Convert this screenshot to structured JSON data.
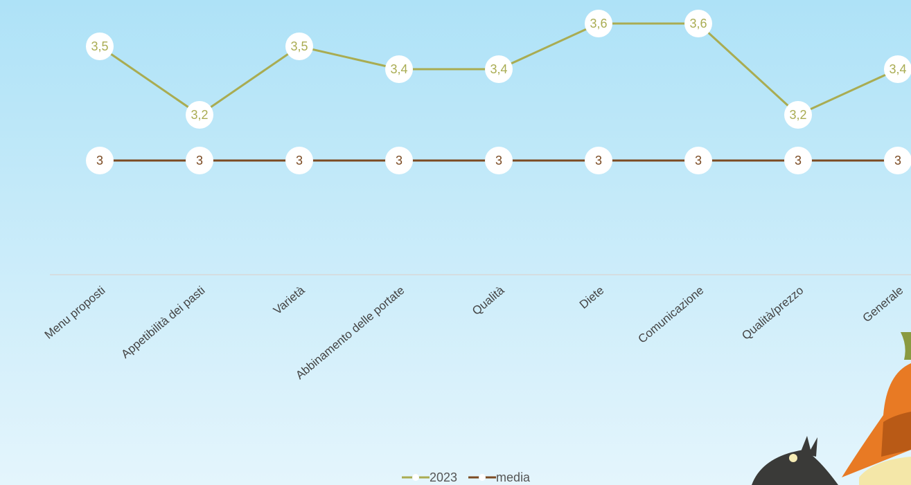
{
  "chart_data": {
    "type": "line",
    "categories": [
      "Menu proposti",
      "Appetibilità dei pasti",
      "Varietà",
      "Abbinamento delle portate",
      "Qualità",
      "Diete",
      "Comunicazione",
      "Qualità/prezzo",
      "Generale"
    ],
    "series": [
      {
        "name": "2023",
        "color": "#a9ac52",
        "values": [
          3.5,
          3.2,
          3.5,
          3.4,
          3.4,
          3.6,
          3.6,
          3.2,
          3.4
        ],
        "value_labels": [
          "3,5",
          "3,2",
          "3,5",
          "3,4",
          "3,4",
          "3,6",
          "3,6",
          "3,2",
          "3,4"
        ]
      },
      {
        "name": "media",
        "color": "#7b4a22",
        "values": [
          3,
          3,
          3,
          3,
          3,
          3,
          3,
          3,
          3
        ]
      }
    ],
    "ylim": [
      2.5,
      3.7
    ],
    "legend": "bottom"
  }
}
